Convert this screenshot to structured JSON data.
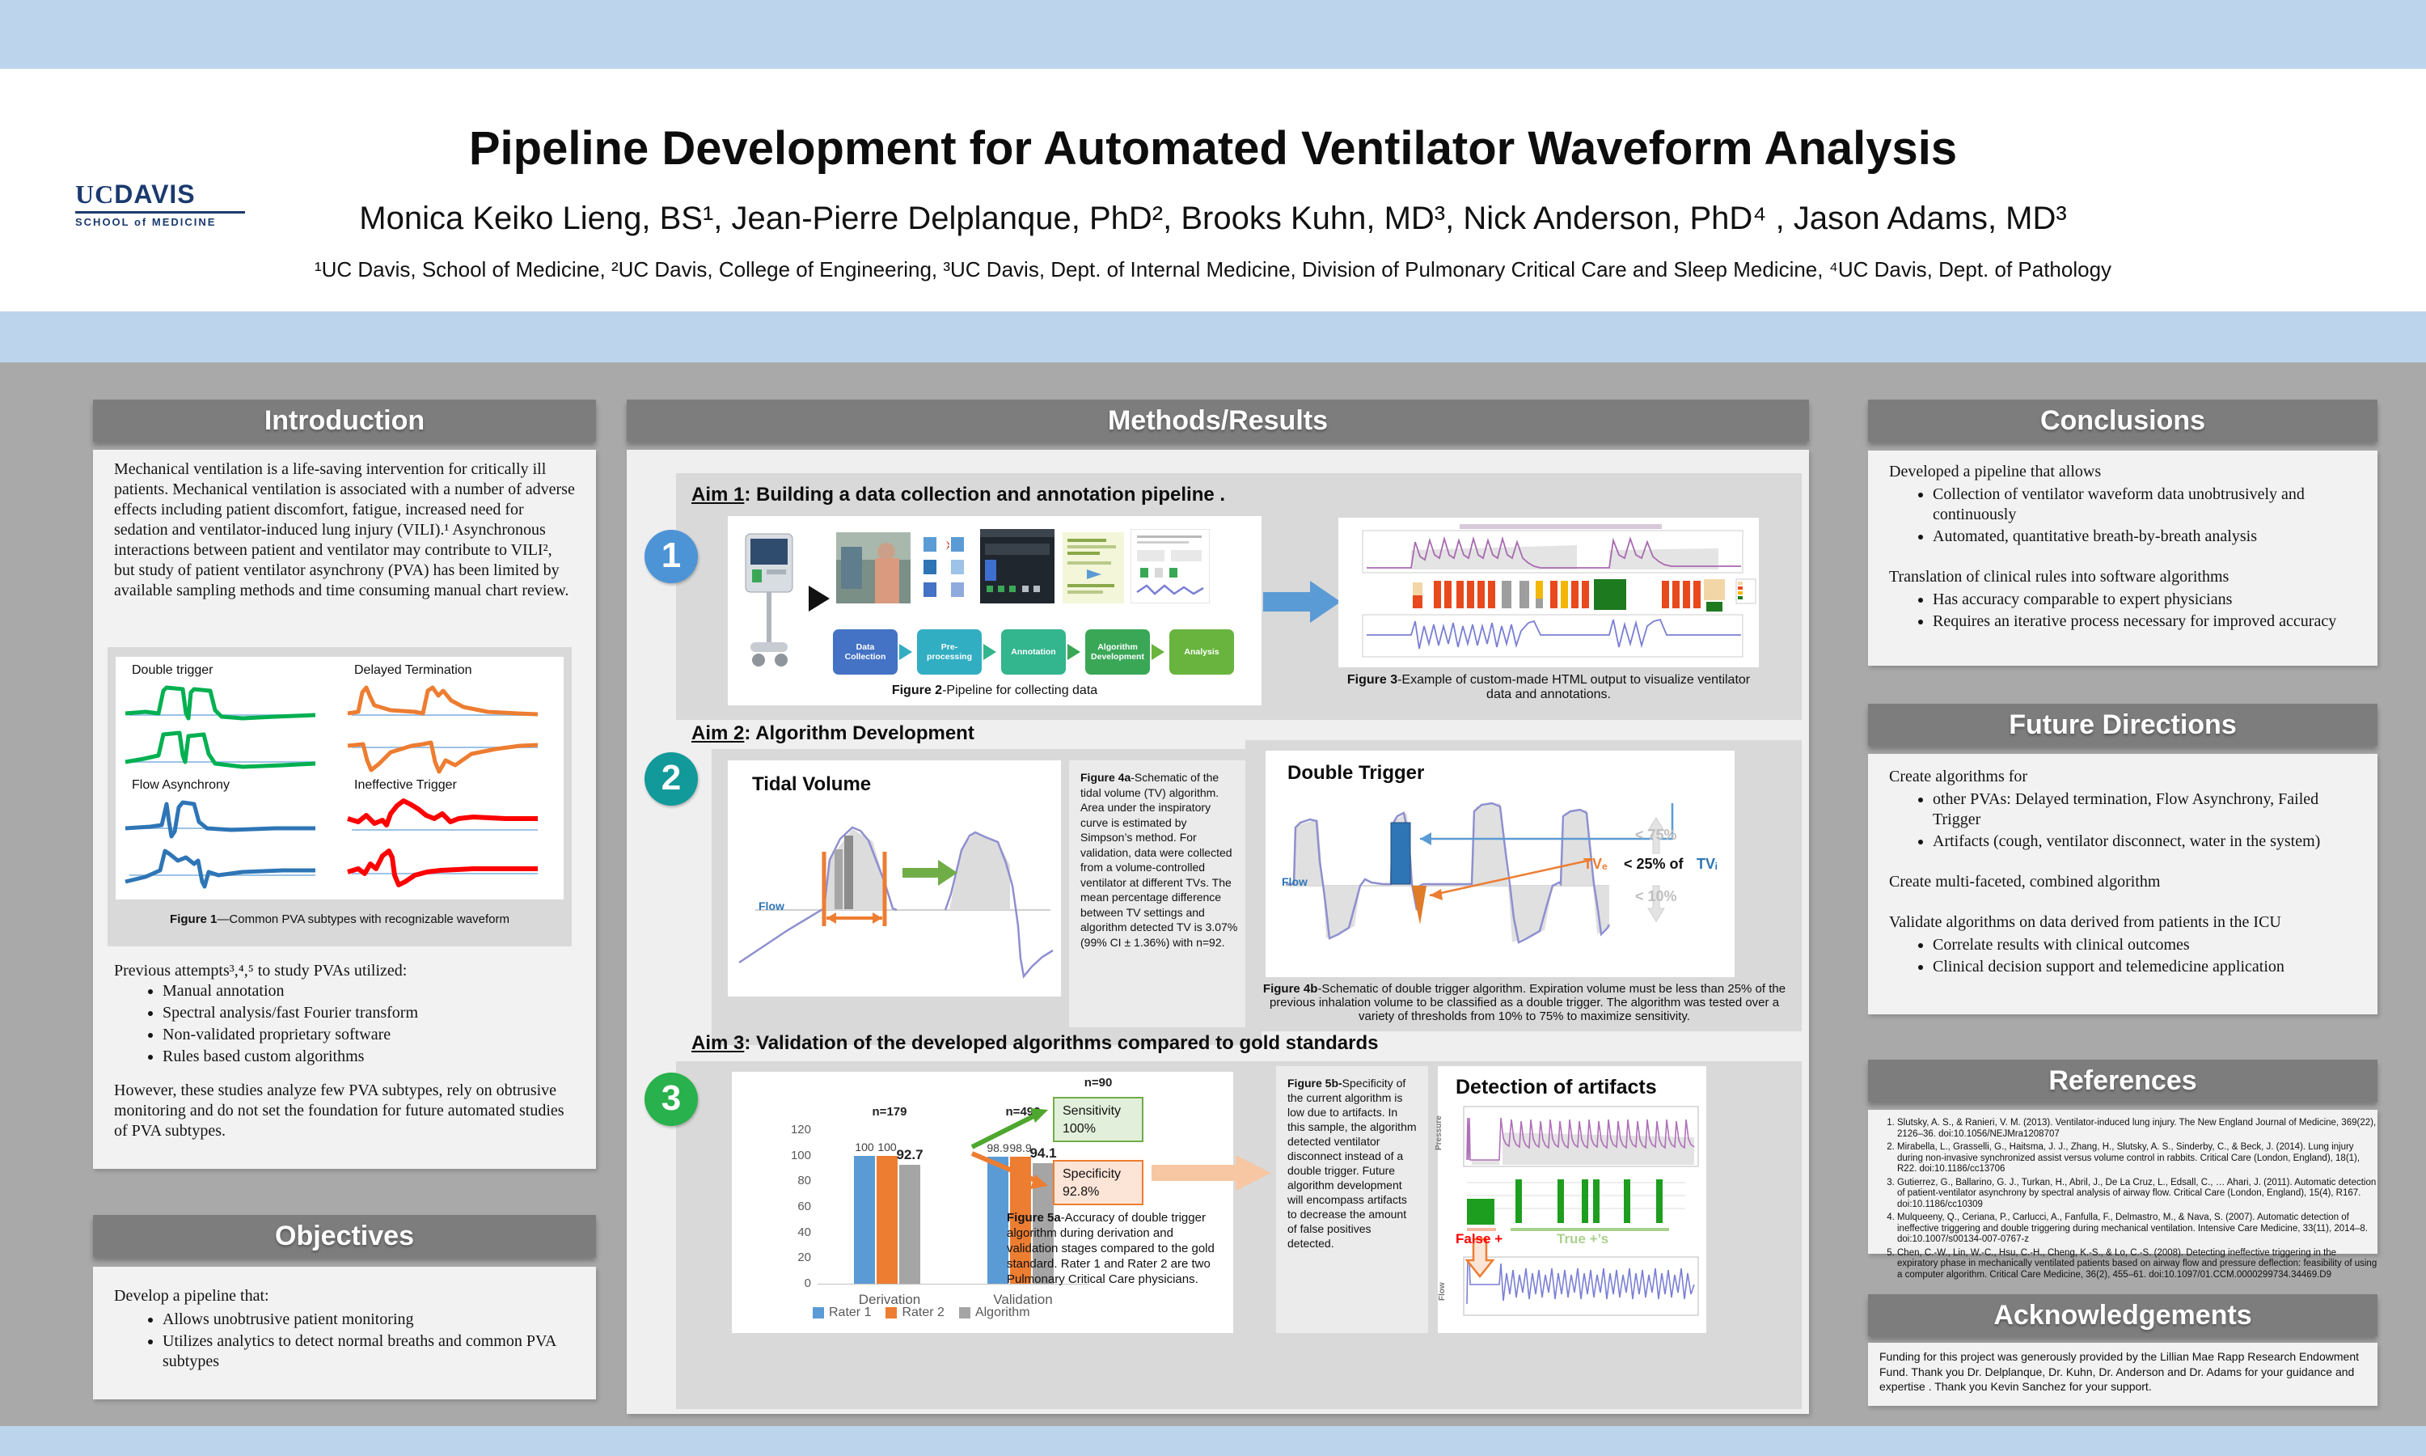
{
  "header": {
    "logo": {
      "uc": "UC",
      "davis": "DAVIS",
      "sub": "SCHOOL of MEDICINE"
    },
    "title": "Pipeline Development for Automated Ventilator Waveform Analysis",
    "authors": "Monica Keiko Lieng, BS¹, Jean-Pierre Delplanque, PhD², Brooks Kuhn, MD³, Nick Anderson, PhD⁴ , Jason Adams, MD³",
    "affiliations": "¹UC Davis, School of Medicine, ²UC Davis, College of Engineering, ³UC Davis, Dept. of Internal Medicine, Division of Pulmonary Critical Care and Sleep Medicine, ⁴UC Davis, Dept. of Pathology"
  },
  "introduction": {
    "header": "Introduction",
    "paragraph": "Mechanical ventilation is a life-saving intervention for critically ill patients. Mechanical ventilation is associated with a number of adverse effects including patient discomfort, fatigue, increased need for sedation and ventilator-induced lung injury (VILI).¹ Asynchronous interactions between patient and ventilator may contribute to VILI², but study of patient ventilator asynchrony (PVA) has been limited by available sampling methods and time consuming manual chart review.",
    "figure1": {
      "labels": [
        "Double trigger",
        "Delayed Termination",
        "Flow Asynchrony",
        "Ineffective Trigger"
      ],
      "caption_bold": "Figure 1",
      "caption_rest": "—Common PVA subtypes with recognizable waveform"
    },
    "previous_intro": "Previous attempts³,⁴,⁵ to study PVAs utilized:",
    "previous_items": [
      "Manual annotation",
      "Spectral analysis/fast Fourier transform",
      "Non-validated proprietary software",
      "Rules based custom algorithms"
    ],
    "however": "However, these studies analyze few PVA subtypes, rely on obtrusive monitoring and do not set the foundation for future automated studies of PVA subtypes."
  },
  "objectives": {
    "header": "Objectives",
    "intro": "Develop a pipeline that:",
    "items": [
      "Allows unobtrusive patient monitoring",
      "Utilizes analytics to detect normal breaths and common PVA subtypes"
    ]
  },
  "methods": {
    "header": "Methods/Results",
    "aim1": {
      "num": "1",
      "title_strong": "Aim 1",
      "title_rest": ": Building a data collection and annotation pipeline .",
      "pipeline": [
        "Data Collection",
        "Pre-processing",
        "Annotation",
        "Algorithm Development",
        "Analysis"
      ],
      "fig2_caption_bold": "Figure 2",
      "fig2_caption_rest": "-Pipeline for collecting data",
      "fig3_caption_bold": "Figure 3",
      "fig3_caption_rest": "-Example of custom-made HTML output to visualize ventilator data and annotations."
    },
    "aim2": {
      "num": "2",
      "title_strong": "Aim 2",
      "title_rest": ": Algorithm Development",
      "tv_title": "Tidal Volume",
      "flow_label": "Flow",
      "fig4a_bold": "Figure 4a",
      "fig4a_text": "-Schematic of the tidal volume (TV) algorithm. Area under the inspiratory curve is estimated by Simpson’s method. For validation, data were collected from a volume-controlled ventilator at different TVs. The mean percentage difference between TV settings and algorithm detected TV is 3.07% (99% CI ± 1.36%) with n=92.",
      "dt_title": "Double Trigger",
      "dt_flow_label": "Flow",
      "dt_lt75": "< 75%",
      "dt_tve": "TVₑ",
      "dt_mid": "< 25%  of",
      "dt_tvi": "TVᵢ",
      "dt_lt10": "< 10%",
      "fig4b_bold": "Figure 4b",
      "fig4b_text": "-Schematic of double trigger algorithm. Expiration volume must be less than 25% of the previous inhalation volume to be classified as a double trigger. The algorithm was tested over a variety of thresholds from 10% to 75% to maximize sensitivity."
    },
    "aim3": {
      "num": "3",
      "title_strong": "Aim 3",
      "title_rest": ": Validation of the developed algorithms compared to gold standards",
      "n90": "n=90",
      "sens_label": "Sensitivity",
      "sens_value": "100%",
      "spec_label": "Specificity",
      "spec_value": "92.8%",
      "fig5a_bold": "Figure 5a",
      "fig5a_text": "-Accuracy of double trigger algorithm during derivation and validation stages compared to the gold standard. Rater 1 and Rater 2 are two Pulmonary Critical Care physicians.",
      "fig5b_bold": "Figure 5b-",
      "fig5b_text": "Specificity of the current algorithm is low due to artifacts. In this sample, the algorithm detected ventilator disconnect instead of a double trigger. Future algorithm development will encompass artifacts to decrease the amount of false positives detected.",
      "artifacts_title": "Detection of artifacts",
      "false_label": "False +",
      "true_label": "True +’s",
      "pressure_label": "Pressure",
      "flow_label": "Flow"
    }
  },
  "conclusions": {
    "header": "Conclusions",
    "blocks": [
      {
        "text": "Developed a pipeline that allows",
        "bullets": [
          "Collection of ventilator waveform data unobtrusively and continuously",
          "Automated, quantitative breath-by-breath analysis"
        ]
      },
      {
        "text": "Translation of clinical rules into software algorithms",
        "bullets": [
          "Has accuracy comparable to expert physicians",
          "Requires an iterative process necessary for improved accuracy"
        ]
      }
    ]
  },
  "future": {
    "header": "Future Directions",
    "blocks": [
      {
        "text": "Create algorithms for",
        "bullets": [
          "other PVAs: Delayed termination, Flow Asynchrony, Failed Trigger",
          "Artifacts (cough, ventilator disconnect,  water in the system)"
        ]
      },
      {
        "text": "Create multi-faceted, combined algorithm",
        "bullets": []
      },
      {
        "text": "Validate algorithms on data derived from patients in the ICU",
        "bullets": [
          "Correlate results with clinical outcomes",
          "Clinical decision support and telemedicine application"
        ]
      }
    ]
  },
  "references": {
    "header": "References",
    "items": [
      "Slutsky, A. S., & Ranieri, V. M. (2013). Ventilator-induced lung injury. The New England Journal of Medicine, 369(22), 2126–36. doi:10.1056/NEJMra1208707",
      "Mirabella, L., Grasselli, G., Haitsma, J. J., Zhang, H., Slutsky, A. S., Sinderby, C., & Beck, J. (2014). Lung injury during non-invasive synchronized assist versus volume control in rabbits. Critical Care (London, England), 18(1), R22. doi:10.1186/cc13706",
      "Gutierrez, G., Ballarino, G. J., Turkan, H., Abril, J., De La Cruz, L., Edsall, C., … Ahari, J. (2011). Automatic detection of patient-ventilator asynchrony by spectral analysis of airway flow. Critical Care (London, England), 15(4), R167. doi:10.1186/cc10309",
      "Mulqueeny, Q., Ceriana, P., Carlucci, A., Fanfulla, F., Delmastro, M., & Nava, S. (2007). Automatic detection of ineffective triggering and double triggering during mechanical ventilation. Intensive Care Medicine, 33(11), 2014–8. doi:10.1007/s00134-007-0767-z",
      "Chen, C.-W., Lin, W.-C., Hsu, C.-H., Cheng, K.-S., & Lo, C.-S. (2008). Detecting ineffective triggering in the expiratory phase in mechanically ventilated patients based on airway flow and pressure deflection: feasibility of using a computer algorithm. Critical Care Medicine, 36(2), 455–61. doi:10.1097/01.CCM.0000299734.34469.D9"
    ]
  },
  "acknowledgements": {
    "header": "Acknowledgements",
    "text": "Funding for this project was generously provided by the Lillian Mae Rapp Research Endowment Fund. Thank you Dr. Delplanque, Dr. Kuhn, Dr. Anderson and Dr. Adams for your guidance and expertise . Thank you Kevin Sanchez for your support."
  },
  "chart_data": {
    "type": "bar",
    "categories": [
      "Derivation",
      "Validation"
    ],
    "group_labels": [
      "n=179",
      "n=492"
    ],
    "series": [
      {
        "name": "Rater 1",
        "color": "#5b9bd5",
        "values": [
          100,
          98.9
        ]
      },
      {
        "name": "Rater 2",
        "color": "#ed7d31",
        "values": [
          100,
          98.9
        ]
      },
      {
        "name": "Algorithm",
        "color": "#a5a5a5",
        "values": [
          92.7,
          94.1
        ]
      }
    ],
    "ylim": [
      0,
      120
    ],
    "yticks": [
      0,
      20,
      40,
      60,
      80,
      100,
      120
    ],
    "grid": false,
    "legend_position": "bottom",
    "xlabel": "",
    "ylabel": ""
  }
}
